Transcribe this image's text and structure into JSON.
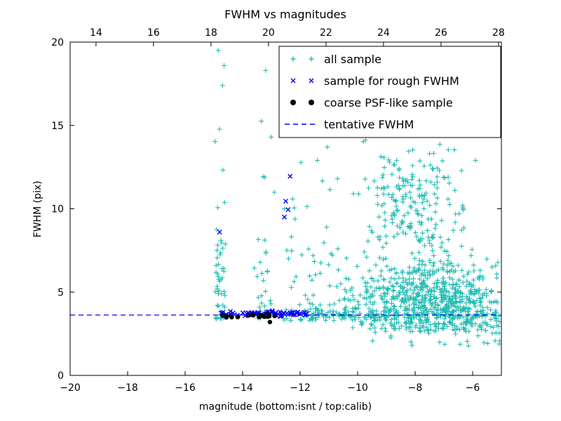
{
  "chart_data": {
    "type": "scatter",
    "title": "FWHM vs magnitudes",
    "xlabel": "magnitude (bottom:isnt / top:calib)",
    "ylabel": "FWHM (pix)",
    "xlim": [
      -20,
      -5
    ],
    "ylim": [
      0,
      20
    ],
    "top_axis_lim": [
      13.1,
      28.1
    ],
    "x_ticks": [
      -20,
      -18,
      -16,
      -14,
      -12,
      -10,
      -8,
      -6
    ],
    "x_tick_labels": [
      "−20",
      "−18",
      "−16",
      "−14",
      "−12",
      "−10",
      "−8",
      "−6"
    ],
    "top_ticks": [
      14,
      16,
      18,
      20,
      22,
      24,
      26,
      28
    ],
    "top_tick_labels": [
      "14",
      "16",
      "18",
      "20",
      "22",
      "24",
      "26",
      "28"
    ],
    "y_ticks": [
      0,
      5,
      10,
      15,
      20
    ],
    "y_tick_labels": [
      "0",
      "5",
      "10",
      "15",
      "20"
    ],
    "grid": false,
    "legend_position": "upper right",
    "tentative_fwhm": 3.62,
    "colors": {
      "all_sample": "#20bcb4",
      "rough_fwhm": "#0000ff",
      "psf_like": "#000000",
      "tentative_line": "#0000ff",
      "axis": "#000000",
      "background": "#ffffff"
    },
    "series": [
      {
        "name": "all sample",
        "marker": "plus",
        "color": "#20bcb4",
        "seed": 42,
        "clusters": [
          {
            "count": 45,
            "x": {
              "type": "uniform",
              "min": -14.95,
              "max": -14.6
            },
            "y": {
              "type": "uniform",
              "min": 3.4,
              "max": 8.8,
              "pow": 1.6
            }
          },
          {
            "count": 6,
            "x": {
              "type": "uniform",
              "min": -15.0,
              "max": -14.55
            },
            "y": {
              "type": "uniform",
              "min": 9.0,
              "max": 19.6
            }
          },
          {
            "count": 26,
            "x": {
              "type": "uniform",
              "min": -13.6,
              "max": -12.95
            },
            "y": {
              "type": "uniform",
              "min": 3.4,
              "max": 8.2,
              "pow": 1.5
            }
          },
          {
            "count": 5,
            "x": {
              "type": "uniform",
              "min": -13.5,
              "max": -12.6
            },
            "y": {
              "type": "uniform",
              "min": 9.0,
              "max": 18.0
            }
          },
          {
            "count": 55,
            "x": {
              "type": "uniform",
              "min": -12.6,
              "max": -10.6
            },
            "y": {
              "type": "uniform",
              "min": 3.3,
              "max": 9.0,
              "pow": 2.2
            }
          },
          {
            "count": 8,
            "x": {
              "type": "uniform",
              "min": -12.3,
              "max": -10.7
            },
            "y": {
              "type": "uniform",
              "min": 9.0,
              "max": 13.0
            }
          },
          {
            "count": 720,
            "x": {
              "type": "gauss",
              "mean": -7.4,
              "std": 1.45,
              "min": -10.6,
              "max": -5.05
            },
            "y": {
              "type": "gauss",
              "mean": 4.4,
              "std": 1.4,
              "min": 2.6,
              "max": 9.0
            }
          },
          {
            "count": 190,
            "x": {
              "type": "gauss",
              "mean": -8.1,
              "std": 0.85,
              "min": -10.3,
              "max": -6.2
            },
            "y": {
              "type": "gauss",
              "mean": 10.3,
              "std": 2.0,
              "min": 8.0,
              "max": 16.3
            }
          },
          {
            "count": 160,
            "x": {
              "type": "uniform",
              "min": -11.9,
              "max": -5.05
            },
            "y": {
              "type": "gauss",
              "mean": 3.65,
              "std": 0.18,
              "min": 3.2,
              "max": 4.2
            }
          },
          {
            "count": 40,
            "x": {
              "type": "uniform",
              "min": -9.6,
              "max": -5.05
            },
            "y": {
              "type": "uniform",
              "min": 1.3,
              "max": 3.2,
              "pow": 0.7
            }
          }
        ],
        "points": [
          [
            -14.85,
            19.5
          ],
          [
            -14.7,
            17.4
          ],
          [
            -13.2,
            18.3
          ],
          [
            -12.0,
            15.6
          ],
          [
            -11.05,
            13.7
          ],
          [
            -10.7,
            11.8
          ],
          [
            -9.9,
            15.5
          ],
          [
            -8.55,
            16.2
          ],
          [
            -5.9,
            12.9
          ],
          [
            -6.35,
            10.2
          ],
          [
            -10.15,
            10.9
          ],
          [
            -12.55,
            10.0
          ]
        ]
      },
      {
        "name": "sample for rough FWHM",
        "marker": "x",
        "color": "#0000ff",
        "seed": 7,
        "clusters": [
          {
            "count": 72,
            "x": {
              "type": "uniform",
              "min": -14.75,
              "max": -11.75
            },
            "y": {
              "type": "gauss",
              "mean": 3.7,
              "std": 0.07,
              "min": 3.5,
              "max": 3.95
            }
          }
        ],
        "points": [
          [
            -14.8,
            8.6
          ],
          [
            -12.35,
            11.95
          ],
          [
            -12.5,
            10.45
          ],
          [
            -12.42,
            9.95
          ],
          [
            -12.55,
            9.5
          ]
        ]
      },
      {
        "name": "coarse PSF-like sample",
        "marker": "dot",
        "color": "#000000",
        "seed": 3,
        "clusters": [
          {
            "count": 26,
            "x": {
              "type": "uniform",
              "min": -14.7,
              "max": -12.85
            },
            "y": {
              "type": "gauss",
              "mean": 3.6,
              "std": 0.07,
              "min": 3.42,
              "max": 3.8
            }
          }
        ],
        "points": [
          [
            -13.05,
            3.2
          ]
        ]
      },
      {
        "name": "tentative FWHM",
        "marker": "dashed-line",
        "color": "#0000ff",
        "y": 3.62
      }
    ]
  }
}
